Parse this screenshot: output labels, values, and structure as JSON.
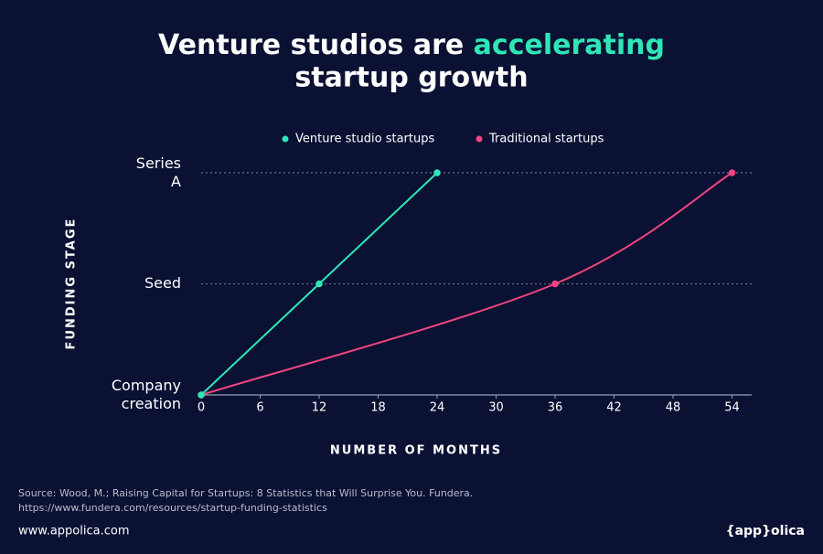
{
  "chart_data": {
    "type": "line",
    "title": [
      "Venture studios are",
      "accelerating",
      "startup growth"
    ],
    "x_label": "NUMBER OF MONTHS",
    "y_label": "FUNDING STAGE",
    "xlim": [
      0,
      56
    ],
    "xticks": [
      0,
      6,
      12,
      18,
      24,
      30,
      36,
      42,
      48,
      54
    ],
    "ylim": [
      0,
      2
    ],
    "yticks": [
      {
        "value": 0,
        "label": "Company creation"
      },
      {
        "value": 1,
        "label": "Seed"
      },
      {
        "value": 2,
        "label": "Series A"
      }
    ],
    "grid": true,
    "series": [
      {
        "name": "Venture studio startups",
        "color": "#2ee6b6",
        "x": [
          0,
          12,
          24
        ],
        "values": [
          0,
          1,
          2
        ],
        "curve": "straight"
      },
      {
        "name": "Traditional startups",
        "color": "#f0457f",
        "x": [
          0,
          36,
          54
        ],
        "values": [
          0,
          1,
          2
        ],
        "curve": "smooth"
      }
    ]
  },
  "source": [
    "Source: Wood, M.; Raising Capital for Startups: 8 Statistics that Will Surprise You. Fundera.",
    "https://www.fundera.com/resources/startup-funding-statistics"
  ],
  "footer": {
    "website": "www.appolica.com",
    "brand": "{app}olica"
  }
}
